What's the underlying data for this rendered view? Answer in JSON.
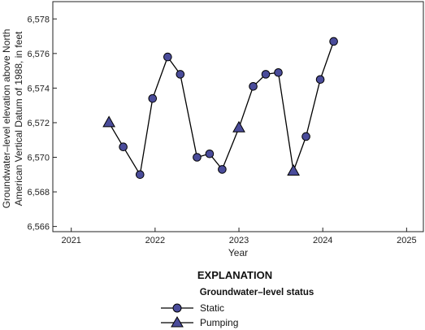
{
  "chart_data": {
    "type": "line",
    "xlabel": "Year",
    "ylabel_lines": [
      "Groundwater–level elevation above North",
      "American Vertical Datum of 1988, in feet"
    ],
    "xlim": [
      2020.78,
      2025.2
    ],
    "ylim": [
      6565.7,
      6579.0
    ],
    "x_ticks": [
      2021,
      2022,
      2023,
      2024,
      2025
    ],
    "x_tick_labels": [
      "2021",
      "2022",
      "2023",
      "2024",
      "2025"
    ],
    "y_ticks": [
      6566,
      6568,
      6570,
      6572,
      6574,
      6576,
      6578
    ],
    "y_tick_labels": [
      "6,566",
      "6,568",
      "6,570",
      "6,572",
      "6,574",
      "6,576",
      "6,578"
    ],
    "grid": false,
    "series": [
      {
        "name": "Static",
        "marker": "circle",
        "points": [
          {
            "x": 2021.62,
            "y": 6570.6
          },
          {
            "x": 2021.82,
            "y": 6569.0
          },
          {
            "x": 2021.97,
            "y": 6573.4
          },
          {
            "x": 2022.15,
            "y": 6575.8
          },
          {
            "x": 2022.3,
            "y": 6574.8
          },
          {
            "x": 2022.5,
            "y": 6570.0
          },
          {
            "x": 2022.65,
            "y": 6570.2
          },
          {
            "x": 2022.8,
            "y": 6569.3
          },
          {
            "x": 2023.17,
            "y": 6574.1
          },
          {
            "x": 2023.32,
            "y": 6574.8
          },
          {
            "x": 2023.47,
            "y": 6574.9
          },
          {
            "x": 2023.8,
            "y": 6571.2
          },
          {
            "x": 2023.97,
            "y": 6574.5
          },
          {
            "x": 2024.13,
            "y": 6576.7
          }
        ]
      },
      {
        "name": "Pumping",
        "marker": "triangle",
        "points": [
          {
            "x": 2021.45,
            "y": 6572.0
          },
          {
            "x": 2023.0,
            "y": 6571.7
          },
          {
            "x": 2023.65,
            "y": 6569.2
          }
        ]
      }
    ],
    "line_sequence": [
      [
        2021.45,
        6572.0
      ],
      [
        2021.62,
        6570.6
      ],
      [
        2021.82,
        6569.0
      ],
      [
        2021.97,
        6573.4
      ],
      [
        2022.15,
        6575.8
      ],
      [
        2022.3,
        6574.8
      ],
      [
        2022.5,
        6570.0
      ],
      [
        2022.65,
        6570.2
      ],
      [
        2022.8,
        6569.3
      ],
      [
        2023.0,
        6571.7
      ],
      [
        2023.17,
        6574.1
      ],
      [
        2023.32,
        6574.8
      ],
      [
        2023.47,
        6574.9
      ],
      [
        2023.65,
        6569.2
      ],
      [
        2023.8,
        6571.2
      ],
      [
        2023.97,
        6574.5
      ],
      [
        2024.13,
        6576.7
      ]
    ],
    "marker_fill": "#4a4c9a",
    "marker_stroke": "#000000",
    "line_color": "#000000",
    "legend": {
      "title": "EXPLANATION",
      "subtitle": "Groundwater–level status",
      "items": [
        {
          "label": "Static",
          "marker": "circle"
        },
        {
          "label": "Pumping",
          "marker": "triangle"
        }
      ]
    }
  }
}
